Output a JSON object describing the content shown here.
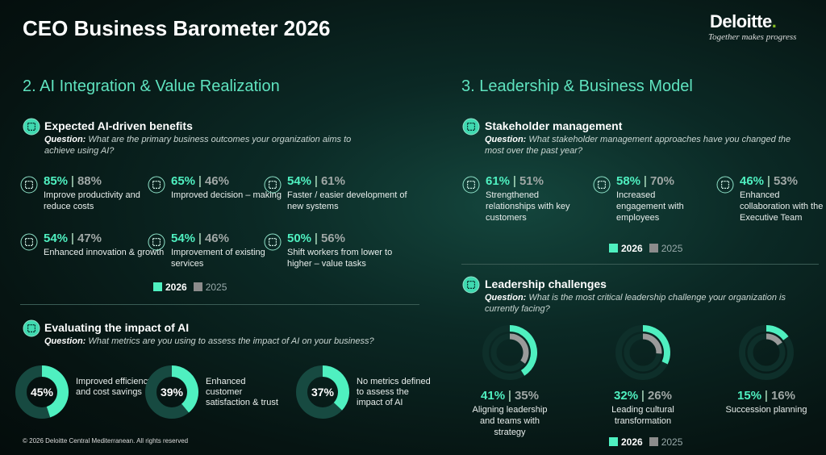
{
  "header": {
    "title": "CEO Business Barometer 2026",
    "brand": "Deloitte",
    "brand_dot": ".",
    "tagline": "Together makes progress"
  },
  "separator": "|",
  "left": {
    "title": "2. AI Integration & Value Realization",
    "benefits": {
      "title": "Expected AI-driven benefits",
      "question_label": "Question:",
      "question": "What are the primary business outcomes your organization aims to achieve using AI?",
      "items": [
        {
          "v2026": "85%",
          "v2025": "88%",
          "label": "Improve productivity and reduce costs"
        },
        {
          "v2026": "65%",
          "v2025": "46%",
          "label": "Improved decision – making"
        },
        {
          "v2026": "54%",
          "v2025": "61%",
          "label": "Faster / easier development of new systems"
        },
        {
          "v2026": "54%",
          "v2025": "47%",
          "label": "Enhanced innovation & growth"
        },
        {
          "v2026": "54%",
          "v2025": "46%",
          "label": "Improvement of existing services"
        },
        {
          "v2026": "50%",
          "v2025": "56%",
          "label": "Shift workers from lower to higher – value tasks"
        }
      ],
      "legend": [
        "2026",
        "2025"
      ]
    },
    "impact": {
      "title": "Evaluating the impact of AI",
      "question_label": "Question:",
      "question": "What metrics are you using to assess the impact of AI on your business?",
      "items": [
        {
          "value": {
            "value": 45,
            "label": "45%"
          },
          "label": "Improved efficiency and cost savings"
        },
        {
          "value": {
            "value": 39,
            "label": "39%"
          },
          "label": "Enhanced customer satisfaction & trust"
        },
        {
          "value": {
            "value": 37,
            "label": "37%"
          },
          "label": "No metrics defined to assess the impact of AI"
        }
      ]
    }
  },
  "right": {
    "title": "3. Leadership & Business Model",
    "stakeholder": {
      "title": "Stakeholder management",
      "question_label": "Question:",
      "question": "What stakeholder management approaches have you changed the most over the past year?",
      "items": [
        {
          "v2026": "61%",
          "v2025": "51%",
          "label": "Strengthened relationships with key customers"
        },
        {
          "v2026": "58%",
          "v2025": "70%",
          "label": "Increased engagement with employees"
        },
        {
          "v2026": "46%",
          "v2025": "53%",
          "label": "Enhanced collaboration with the Executive Team"
        }
      ],
      "legend": [
        "2026",
        "2025"
      ]
    },
    "challenges": {
      "title": "Leadership challenges",
      "question_label": "Question:",
      "question": "What is the most critical leadership challenge your organization is currently facing?",
      "items": [
        {
          "v2026": {
            "value": 41,
            "label": "41%"
          },
          "v2025": {
            "value": 35,
            "label": "35%"
          },
          "label": "Aligning leadership and teams with strategy"
        },
        {
          "v2026": {
            "value": 32,
            "label": "32%"
          },
          "v2025": {
            "value": 26,
            "label": "26%"
          },
          "label": "Leading cultural transformation"
        },
        {
          "v2026": {
            "value": 15,
            "label": "15%"
          },
          "v2025": {
            "value": 16,
            "label": "16%"
          },
          "label": "Succession planning"
        }
      ],
      "legend": [
        "2026",
        "2025"
      ]
    }
  },
  "footer": "© 2026 Deloitte Central Mediterranean. All rights reserved"
}
